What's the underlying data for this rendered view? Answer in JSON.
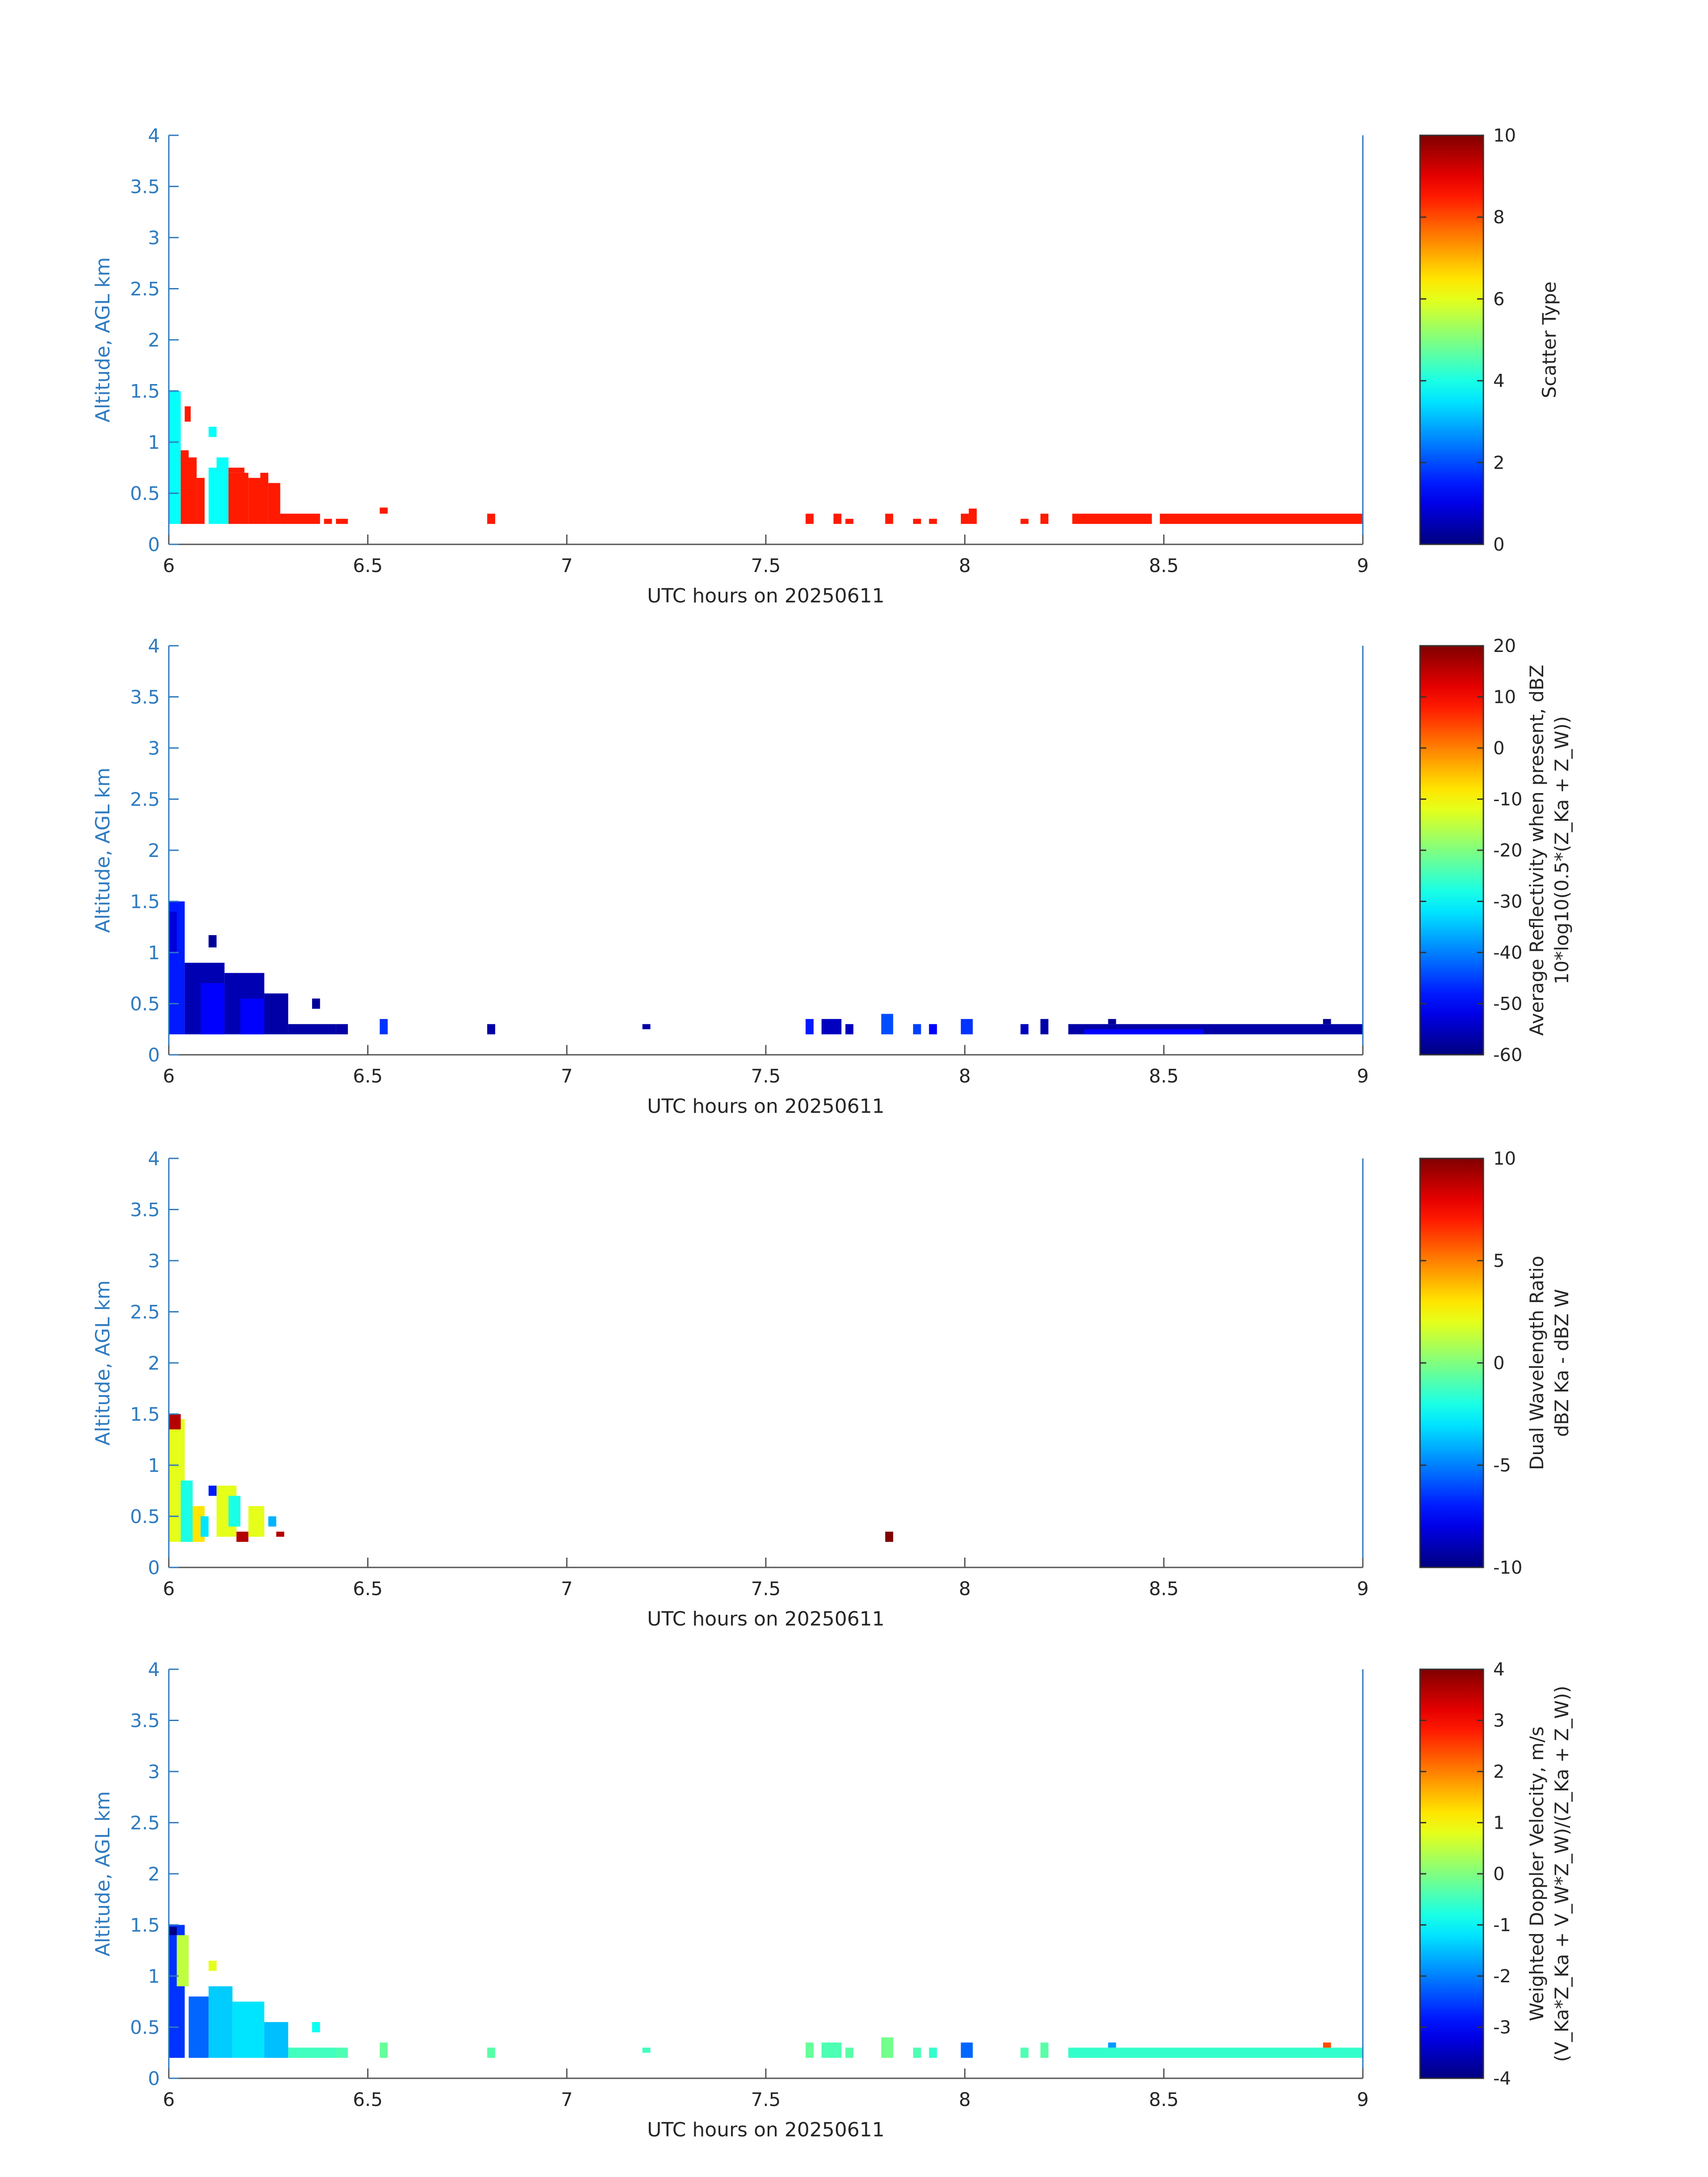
{
  "chart_data": [
    {
      "type": "heatmap",
      "panel": "scatter-type",
      "xlabel": "UTC hours on 20250611",
      "ylabel": "Altitude, AGL km",
      "xlim": [
        6,
        9
      ],
      "ylim": [
        0,
        4
      ],
      "xticks": [
        "6",
        "6.5",
        "7",
        "7.5",
        "8",
        "8.5",
        "9"
      ],
      "yticks": [
        "0",
        "0.5",
        "1",
        "1.5",
        "2",
        "2.5",
        "3",
        "3.5",
        "4"
      ],
      "colorbar": {
        "label_lines": [
          "Scatter Type"
        ],
        "range": [
          0,
          10
        ],
        "ticks": [
          "0",
          "2",
          "4",
          "6",
          "8",
          "10"
        ]
      },
      "cells": [
        [
          6.0,
          0.2,
          0.03,
          1.3,
          3.8
        ],
        [
          6.03,
          0.2,
          0.04,
          0.65,
          8.5
        ],
        [
          6.03,
          0.82,
          0.02,
          0.1,
          8.5
        ],
        [
          6.04,
          1.2,
          0.015,
          0.15,
          8.5
        ],
        [
          6.07,
          0.2,
          0.02,
          0.45,
          8.5
        ],
        [
          6.1,
          0.2,
          0.02,
          0.55,
          3.8
        ],
        [
          6.1,
          1.05,
          0.02,
          0.1,
          3.8
        ],
        [
          6.12,
          0.2,
          0.03,
          0.65,
          3.8
        ],
        [
          6.15,
          0.2,
          0.05,
          0.5,
          8.5
        ],
        [
          6.15,
          0.7,
          0.04,
          0.05,
          8.5
        ],
        [
          6.2,
          0.2,
          0.03,
          0.45,
          8.5
        ],
        [
          6.23,
          0.2,
          0.02,
          0.3,
          8.5
        ],
        [
          6.23,
          0.5,
          0.02,
          0.2,
          8.5
        ],
        [
          6.25,
          0.2,
          0.03,
          0.4,
          8.5
        ],
        [
          6.28,
          0.2,
          0.1,
          0.1,
          8.5
        ],
        [
          6.39,
          0.2,
          0.02,
          0.05,
          8.5
        ],
        [
          6.42,
          0.2,
          0.03,
          0.05,
          8.5
        ],
        [
          6.53,
          0.3,
          0.02,
          0.06,
          8.5
        ],
        [
          6.8,
          0.2,
          0.02,
          0.1,
          8.5
        ],
        [
          7.6,
          0.2,
          0.02,
          0.1,
          8.5
        ],
        [
          7.67,
          0.2,
          0.02,
          0.1,
          8.5
        ],
        [
          7.7,
          0.2,
          0.02,
          0.05,
          8.5
        ],
        [
          7.8,
          0.2,
          0.02,
          0.1,
          8.5
        ],
        [
          7.87,
          0.2,
          0.02,
          0.05,
          8.5
        ],
        [
          7.91,
          0.2,
          0.02,
          0.05,
          8.5
        ],
        [
          7.99,
          0.2,
          0.02,
          0.1,
          8.5
        ],
        [
          8.01,
          0.2,
          0.02,
          0.15,
          8.5
        ],
        [
          8.14,
          0.2,
          0.02,
          0.05,
          8.5
        ],
        [
          8.19,
          0.2,
          0.02,
          0.1,
          8.5
        ],
        [
          8.27,
          0.2,
          0.2,
          0.1,
          8.5
        ],
        [
          8.49,
          0.2,
          0.51,
          0.1,
          8.5
        ]
      ]
    },
    {
      "type": "heatmap",
      "panel": "average-reflectivity",
      "xlabel": "UTC hours on 20250611",
      "ylabel": "Altitude, AGL km",
      "xlim": [
        6,
        9
      ],
      "ylim": [
        0,
        4
      ],
      "xticks": [
        "6",
        "6.5",
        "7",
        "7.5",
        "8",
        "8.5",
        "9"
      ],
      "yticks": [
        "0",
        "0.5",
        "1",
        "1.5",
        "2",
        "2.5",
        "3",
        "3.5",
        "4"
      ],
      "colorbar": {
        "label_lines": [
          "Average Reflectivity when present, dBZ",
          "10*log10(0.5*(Z_Ka + Z_W))"
        ],
        "range": [
          -60,
          20
        ],
        "ticks": [
          "-60",
          "-50",
          "-40",
          "-30",
          "-20",
          "-10",
          "0",
          "10",
          "20"
        ]
      },
      "cells": [
        [
          6.0,
          0.2,
          0.04,
          1.3,
          -48
        ],
        [
          6.0,
          1.0,
          0.02,
          0.4,
          -53
        ],
        [
          6.04,
          0.2,
          0.1,
          0.7,
          -56
        ],
        [
          6.08,
          0.2,
          0.06,
          0.5,
          -50
        ],
        [
          6.1,
          1.05,
          0.02,
          0.12,
          -58
        ],
        [
          6.14,
          0.2,
          0.1,
          0.6,
          -56
        ],
        [
          6.18,
          0.2,
          0.06,
          0.35,
          -50
        ],
        [
          6.24,
          0.2,
          0.06,
          0.4,
          -57
        ],
        [
          6.3,
          0.2,
          0.12,
          0.1,
          -57
        ],
        [
          6.36,
          0.45,
          0.02,
          0.1,
          -58
        ],
        [
          6.42,
          0.2,
          0.03,
          0.1,
          -57
        ],
        [
          6.53,
          0.2,
          0.02,
          0.15,
          -46
        ],
        [
          6.8,
          0.2,
          0.02,
          0.1,
          -57
        ],
        [
          7.19,
          0.25,
          0.02,
          0.05,
          -57
        ],
        [
          7.6,
          0.2,
          0.02,
          0.15,
          -48
        ],
        [
          7.64,
          0.2,
          0.05,
          0.15,
          -55
        ],
        [
          7.7,
          0.2,
          0.02,
          0.1,
          -55
        ],
        [
          7.79,
          0.2,
          0.03,
          0.2,
          -44
        ],
        [
          7.87,
          0.2,
          0.02,
          0.1,
          -45
        ],
        [
          7.91,
          0.2,
          0.02,
          0.1,
          -50
        ],
        [
          7.99,
          0.2,
          0.03,
          0.15,
          -46
        ],
        [
          8.14,
          0.2,
          0.02,
          0.1,
          -55
        ],
        [
          8.19,
          0.2,
          0.02,
          0.15,
          -57
        ],
        [
          8.26,
          0.2,
          0.74,
          0.1,
          -57
        ],
        [
          8.3,
          0.2,
          0.3,
          0.05,
          -50
        ],
        [
          8.36,
          0.3,
          0.02,
          0.05,
          -58
        ],
        [
          8.9,
          0.3,
          0.02,
          0.05,
          -58
        ]
      ]
    },
    {
      "type": "heatmap",
      "panel": "dual-wavelength-ratio",
      "xlabel": "UTC hours on 20250611",
      "ylabel": "Altitude, AGL km",
      "xlim": [
        6,
        9
      ],
      "ylim": [
        0,
        4
      ],
      "xticks": [
        "6",
        "6.5",
        "7",
        "7.5",
        "8",
        "8.5",
        "9"
      ],
      "yticks": [
        "0",
        "0.5",
        "1",
        "1.5",
        "2",
        "2.5",
        "3",
        "3.5",
        "4"
      ],
      "colorbar": {
        "label_lines": [
          "Dual Wavelength Ratio",
          "dBZ Ka - dBZ W"
        ],
        "range": [
          -10,
          10
        ],
        "ticks": [
          "-10",
          "-5",
          "0",
          "5",
          "10"
        ]
      },
      "cells": [
        [
          6.0,
          0.25,
          0.04,
          1.2,
          2
        ],
        [
          6.0,
          1.35,
          0.03,
          0.15,
          9
        ],
        [
          6.03,
          0.25,
          0.03,
          0.6,
          -2
        ],
        [
          6.06,
          0.25,
          0.03,
          0.35,
          3
        ],
        [
          6.08,
          0.3,
          0.02,
          0.2,
          -3
        ],
        [
          6.1,
          0.7,
          0.02,
          0.1,
          -7
        ],
        [
          6.12,
          0.3,
          0.05,
          0.5,
          2
        ],
        [
          6.15,
          0.4,
          0.03,
          0.3,
          -2
        ],
        [
          6.17,
          0.25,
          0.03,
          0.1,
          9
        ],
        [
          6.2,
          0.3,
          0.04,
          0.3,
          2
        ],
        [
          6.25,
          0.4,
          0.02,
          0.1,
          -4
        ],
        [
          6.27,
          0.3,
          0.02,
          0.05,
          9
        ],
        [
          7.8,
          0.25,
          0.02,
          0.1,
          10
        ]
      ]
    },
    {
      "type": "heatmap",
      "panel": "weighted-doppler-velocity",
      "xlabel": "UTC hours on 20250611",
      "ylabel": "Altitude, AGL km",
      "xlim": [
        6,
        9
      ],
      "ylim": [
        0,
        4
      ],
      "xticks": [
        "6",
        "6.5",
        "7",
        "7.5",
        "8",
        "8.5",
        "9"
      ],
      "yticks": [
        "0",
        "0.5",
        "1",
        "1.5",
        "2",
        "2.5",
        "3",
        "3.5",
        "4"
      ],
      "colorbar": {
        "label_lines": [
          "Weighted Doppler Velocity, m/s",
          "(V_Ka*Z_Ka + V_W*Z_W)/(Z_Ka + Z_W))"
        ],
        "range": [
          -4,
          4
        ],
        "ticks": [
          "-4",
          "-3",
          "-2",
          "-1",
          "0",
          "1",
          "2",
          "3",
          "4"
        ]
      },
      "cells": [
        [
          6.0,
          0.2,
          0.04,
          1.3,
          -2.6
        ],
        [
          6.0,
          1.4,
          0.02,
          0.08,
          -4
        ],
        [
          6.02,
          0.9,
          0.03,
          0.5,
          0.5
        ],
        [
          6.05,
          0.2,
          0.05,
          0.6,
          -2.2
        ],
        [
          6.1,
          0.2,
          0.06,
          0.7,
          -1.4
        ],
        [
          6.1,
          1.05,
          0.02,
          0.1,
          0.8
        ],
        [
          6.16,
          0.2,
          0.08,
          0.55,
          -1.2
        ],
        [
          6.24,
          0.2,
          0.06,
          0.35,
          -1.5
        ],
        [
          6.3,
          0.2,
          0.12,
          0.1,
          -0.5
        ],
        [
          6.36,
          0.45,
          0.02,
          0.1,
          -0.9
        ],
        [
          6.42,
          0.2,
          0.03,
          0.1,
          -0.4
        ],
        [
          6.53,
          0.2,
          0.02,
          0.15,
          -0.2
        ],
        [
          6.8,
          0.2,
          0.02,
          0.1,
          -0.3
        ],
        [
          7.19,
          0.25,
          0.02,
          0.05,
          -0.5
        ],
        [
          7.6,
          0.2,
          0.02,
          0.15,
          -0.2
        ],
        [
          7.64,
          0.2,
          0.05,
          0.15,
          -0.4
        ],
        [
          7.7,
          0.2,
          0.02,
          0.1,
          -0.3
        ],
        [
          7.79,
          0.2,
          0.03,
          0.2,
          -0.1
        ],
        [
          7.87,
          0.2,
          0.02,
          0.1,
          -0.4
        ],
        [
          7.91,
          0.2,
          0.02,
          0.1,
          -0.6
        ],
        [
          7.99,
          0.2,
          0.03,
          0.15,
          -2.2
        ],
        [
          8.14,
          0.2,
          0.02,
          0.1,
          -0.4
        ],
        [
          8.19,
          0.2,
          0.02,
          0.15,
          -0.3
        ],
        [
          8.26,
          0.2,
          0.74,
          0.1,
          -0.6
        ],
        [
          8.36,
          0.3,
          0.02,
          0.05,
          -1.8
        ],
        [
          8.9,
          0.3,
          0.02,
          0.05,
          2.4
        ]
      ]
    }
  ]
}
